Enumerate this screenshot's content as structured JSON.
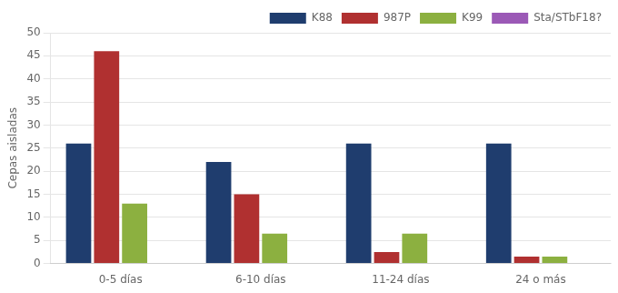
{
  "chart_data": {
    "type": "bar",
    "categories": [
      "0-5 días",
      "6-10 días",
      "11-24 días",
      "24 o más"
    ],
    "series": [
      {
        "name": "K88",
        "color": "#1f3d6e",
        "values": [
          26,
          22,
          26,
          26
        ]
      },
      {
        "name": "987P",
        "color": "#b03030",
        "values": [
          46,
          15,
          2.5,
          1.5
        ]
      },
      {
        "name": "K99",
        "color": "#8cb040",
        "values": [
          13,
          6.5,
          6.5,
          1.5
        ]
      },
      {
        "name": "Sta/STbF18?",
        "color": "#9b59b6",
        "values": [
          0,
          0,
          0,
          0
        ]
      }
    ],
    "ylabel": "Cepas aisladas",
    "ylim": [
      0,
      50
    ],
    "yticks": [
      0,
      5,
      10,
      15,
      20,
      25,
      30,
      35,
      40,
      45,
      50
    ],
    "grid": true,
    "legend": "upper right"
  }
}
